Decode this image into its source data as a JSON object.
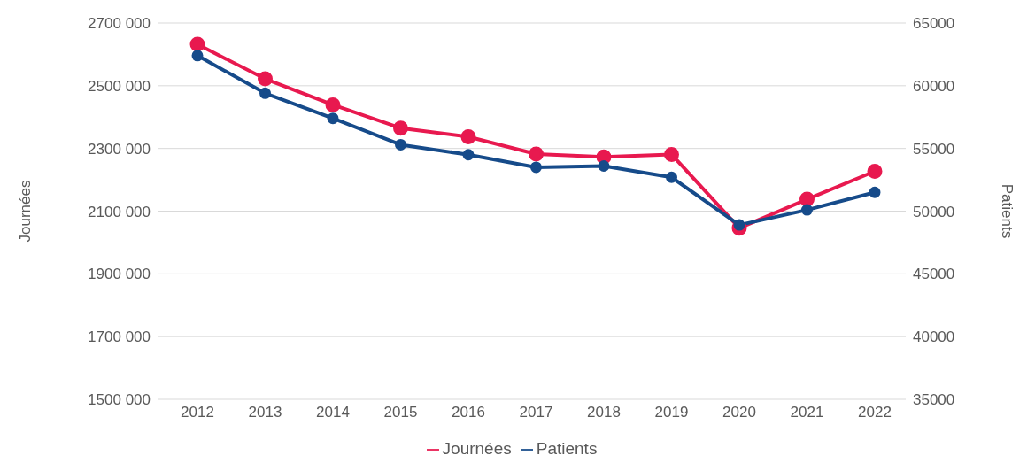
{
  "chart_data": {
    "type": "line",
    "ylabel": "Journées",
    "y2label": "Patients",
    "categories": [
      "2012",
      "2013",
      "2014",
      "2015",
      "2016",
      "2017",
      "2018",
      "2019",
      "2020",
      "2021",
      "2022"
    ],
    "series": [
      {
        "name": "Journées",
        "color": "#e8194f",
        "values": [
          2632000,
          2522000,
          2439000,
          2365000,
          2337000,
          2282000,
          2273000,
          2281000,
          2046000,
          2138000,
          2227000
        ]
      },
      {
        "name": "Patients",
        "color": "#164b8a",
        "axis": "y2",
        "values": [
          62400,
          59400,
          57400,
          55300,
          54500,
          53500,
          53600,
          52700,
          48900,
          50100,
          51500
        ]
      }
    ],
    "ylim": [
      1500000,
      2700000
    ],
    "yticks": [
      {
        "value": 1500000,
        "label": "1500 000"
      },
      {
        "value": 1700000,
        "label": "1700 000"
      },
      {
        "value": 1900000,
        "label": "1900 000"
      },
      {
        "value": 2100000,
        "label": "2100 000"
      },
      {
        "value": 2300000,
        "label": "2300 000"
      },
      {
        "value": 2500000,
        "label": "2500 000"
      },
      {
        "value": 2700000,
        "label": "2700 000"
      }
    ],
    "y2lim": [
      35000,
      65000
    ],
    "y2ticks": [
      35000,
      40000,
      45000,
      50000,
      55000,
      60000,
      65000
    ],
    "grid": "y",
    "legend": "bottom",
    "marker": "circle",
    "line_style": "solid"
  }
}
